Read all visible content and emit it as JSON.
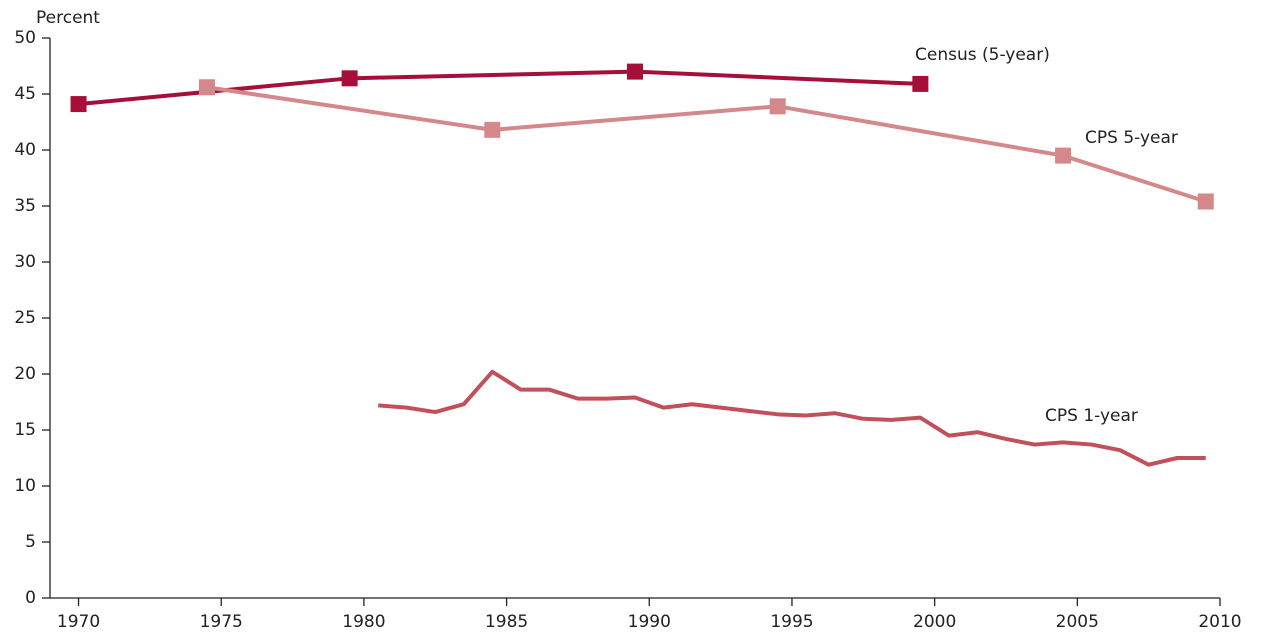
{
  "chart_data": {
    "type": "line",
    "y_label": "Percent",
    "xlim": [
      1969,
      2010
    ],
    "ylim": [
      0,
      50
    ],
    "xticks": [
      1970,
      1975,
      1980,
      1985,
      1990,
      1995,
      2000,
      2005,
      2010
    ],
    "yticks": [
      0,
      5,
      10,
      15,
      20,
      25,
      30,
      35,
      40,
      45,
      50
    ],
    "series": [
      {
        "name": "Census (5-year)",
        "color": "#a50f3a",
        "marker": "square",
        "x": [
          1970,
          1979.5,
          1989.5,
          1999.5
        ],
        "values": [
          44.1,
          46.4,
          47.0,
          45.9
        ]
      },
      {
        "name": "CPS 5-year",
        "color": "#d4888a",
        "marker": "square",
        "x": [
          1974.5,
          1984.5,
          1994.5,
          2004.5,
          2009.5
        ],
        "values": [
          45.6,
          41.8,
          43.9,
          39.5,
          35.4
        ]
      },
      {
        "name": "CPS 1-year",
        "color": "#c1505a",
        "marker": "none",
        "x": [
          1980.5,
          1981.5,
          1982.5,
          1983.5,
          1984.5,
          1985.5,
          1986.5,
          1987.5,
          1988.5,
          1989.5,
          1990.5,
          1991.5,
          1992.5,
          1993.5,
          1994.5,
          1995.5,
          1996.5,
          1997.5,
          1998.5,
          1999.5,
          2000.5,
          2001.5,
          2002.5,
          2003.5,
          2004.5,
          2005.5,
          2006.5,
          2007.5,
          2008.5,
          2009.5
        ],
        "values": [
          17.2,
          17.0,
          16.6,
          17.3,
          20.2,
          18.6,
          18.6,
          17.8,
          17.8,
          17.9,
          17.0,
          17.3,
          17.0,
          16.7,
          16.4,
          16.3,
          16.5,
          16.0,
          15.9,
          16.1,
          14.5,
          14.8,
          14.2,
          13.7,
          13.9,
          13.7,
          13.2,
          11.9,
          12.5,
          12.5
        ]
      }
    ]
  }
}
